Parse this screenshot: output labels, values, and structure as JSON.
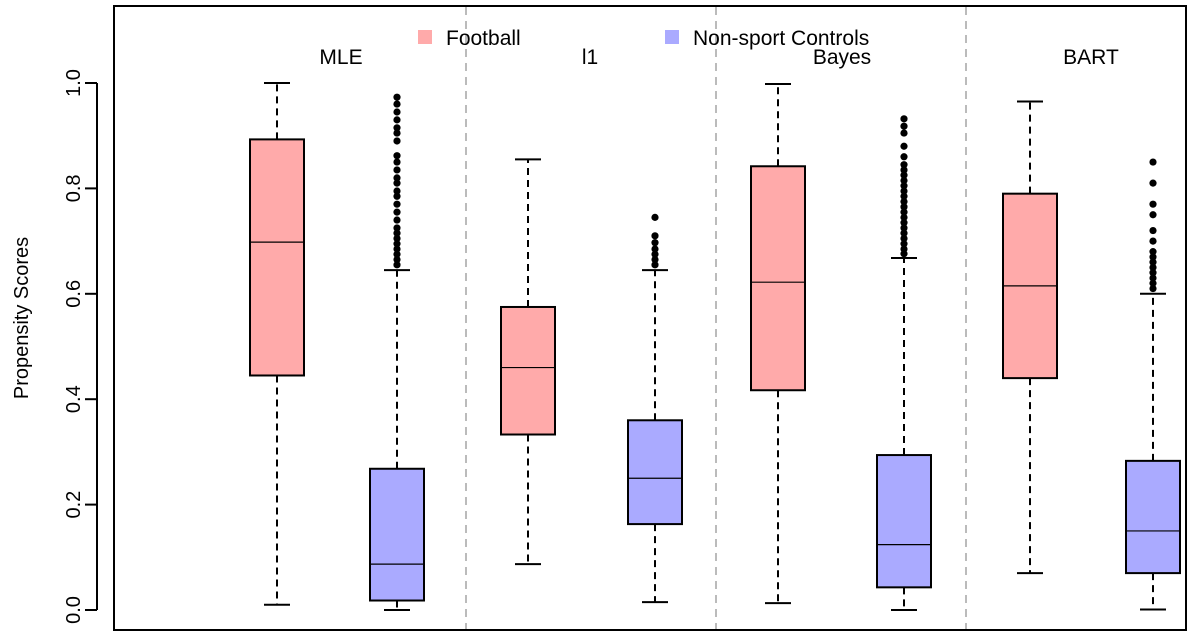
{
  "chart_data": {
    "type": "boxplot",
    "ylabel": "Propensity Scores",
    "ylim": [
      0.0,
      1.0
    ],
    "yticks": [
      "0.0",
      "0.2",
      "0.4",
      "0.6",
      "0.8",
      "1.0"
    ],
    "grid": false,
    "legend": {
      "placement": "top",
      "entries": [
        {
          "name": "Football",
          "color": "#ffaaaa"
        },
        {
          "name": "Non-sport Controls",
          "color": "#aaaaff"
        }
      ]
    },
    "panels": [
      {
        "label": "MLE",
        "boxes": [
          {
            "group": "Football",
            "whisker_low": 0.01,
            "q1": 0.445,
            "median": 0.698,
            "q3": 0.893,
            "whisker_high": 1.0,
            "outliers": []
          },
          {
            "group": "Non-sport Controls",
            "whisker_low": 0.0,
            "q1": 0.018,
            "median": 0.087,
            "q3": 0.268,
            "whisker_high": 0.645,
            "outliers": [
              0.655,
              0.665,
              0.675,
              0.685,
              0.695,
              0.705,
              0.715,
              0.725,
              0.74,
              0.755,
              0.77,
              0.785,
              0.795,
              0.81,
              0.82,
              0.835,
              0.85,
              0.862,
              0.89,
              0.905,
              0.915,
              0.93,
              0.945,
              0.96,
              0.973
            ]
          }
        ]
      },
      {
        "label": "l1",
        "boxes": [
          {
            "group": "Football",
            "whisker_low": 0.087,
            "q1": 0.333,
            "median": 0.46,
            "q3": 0.575,
            "whisker_high": 0.855,
            "outliers": []
          },
          {
            "group": "Non-sport Controls",
            "whisker_low": 0.015,
            "q1": 0.163,
            "median": 0.25,
            "q3": 0.36,
            "whisker_high": 0.645,
            "outliers": [
              0.655,
              0.665,
              0.675,
              0.685,
              0.697,
              0.71,
              0.745
            ]
          }
        ]
      },
      {
        "label": "Bayes",
        "boxes": [
          {
            "group": "Football",
            "whisker_low": 0.013,
            "q1": 0.417,
            "median": 0.622,
            "q3": 0.842,
            "whisker_high": 0.998,
            "outliers": []
          },
          {
            "group": "Non-sport Controls",
            "whisker_low": 0.0,
            "q1": 0.043,
            "median": 0.124,
            "q3": 0.294,
            "whisker_high": 0.668,
            "outliers": [
              0.676,
              0.685,
              0.695,
              0.705,
              0.715,
              0.725,
              0.735,
              0.745,
              0.755,
              0.765,
              0.775,
              0.785,
              0.795,
              0.805,
              0.815,
              0.825,
              0.835,
              0.845,
              0.86,
              0.88,
              0.905,
              0.918,
              0.932
            ]
          }
        ]
      },
      {
        "label": "BART",
        "boxes": [
          {
            "group": "Football",
            "whisker_low": 0.07,
            "q1": 0.44,
            "median": 0.615,
            "q3": 0.79,
            "whisker_high": 0.965,
            "outliers": []
          },
          {
            "group": "Non-sport Controls",
            "whisker_low": 0.001,
            "q1": 0.07,
            "median": 0.15,
            "q3": 0.283,
            "whisker_high": 0.6,
            "outliers": [
              0.61,
              0.62,
              0.63,
              0.64,
              0.65,
              0.66,
              0.67,
              0.68,
              0.7,
              0.72,
              0.75,
              0.77,
              0.81,
              0.85
            ]
          }
        ]
      }
    ]
  }
}
